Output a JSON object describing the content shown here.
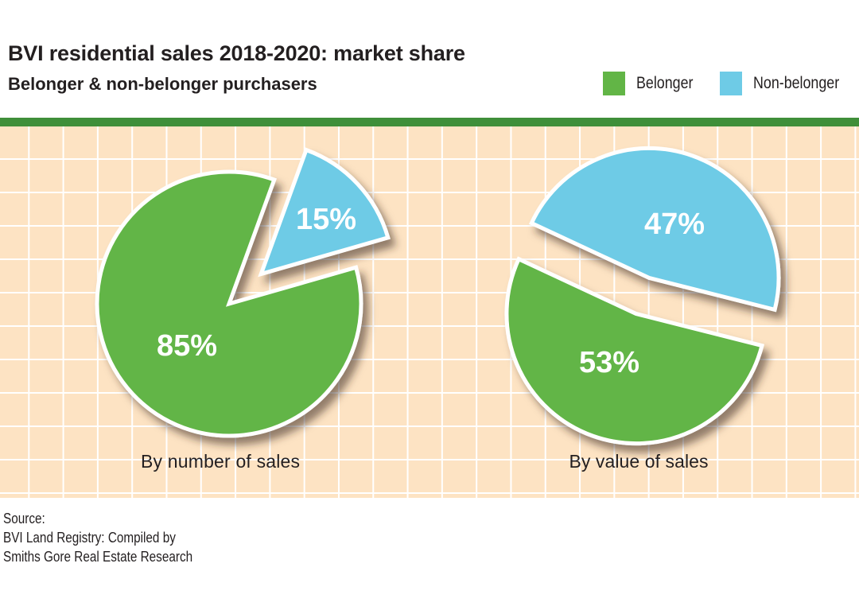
{
  "title": "BVI residential sales 2018-2020: market share",
  "subtitle": "Belonger & non-belonger purchasers",
  "legend": [
    {
      "label": "Belonger",
      "color": "#62b546"
    },
    {
      "label": "Non-belonger",
      "color": "#6ecbe6"
    }
  ],
  "chart_data": [
    {
      "type": "pie",
      "caption": "By number of sales",
      "slices": [
        {
          "name": "Belonger",
          "value": 85,
          "label": "85%",
          "color": "#62b546"
        },
        {
          "name": "Non-belonger",
          "value": 15,
          "label": "15%",
          "color": "#6ecbe6",
          "exploded": true
        }
      ]
    },
    {
      "type": "pie",
      "caption": "By value of sales",
      "slices": [
        {
          "name": "Belonger",
          "value": 53,
          "label": "53%",
          "color": "#62b546",
          "exploded": true
        },
        {
          "name": "Non-belonger",
          "value": 47,
          "label": "47%",
          "color": "#6ecbe6",
          "exploded": true
        }
      ]
    }
  ],
  "source": [
    "Source:",
    "BVI Land Registry: Compiled by",
    "Smiths Gore Real Estate Research"
  ]
}
